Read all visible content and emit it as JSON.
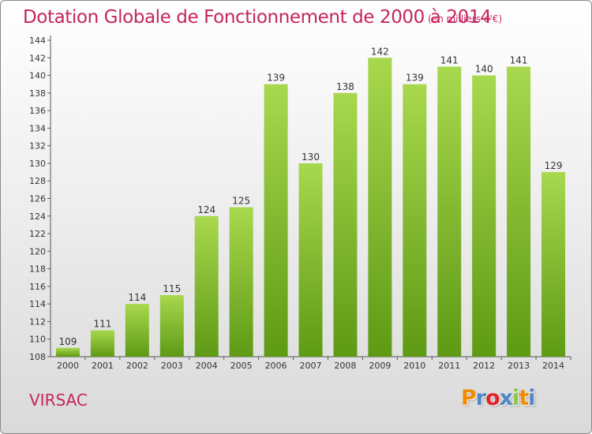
{
  "title": "Dotation Globale de Fonctionnement de 2000 à 2014",
  "unit_note": "(en milliers d'€)",
  "commune": "VIRSAC",
  "logo": [
    "P",
    "r",
    "o",
    "x",
    "i",
    "t",
    "i"
  ],
  "logo_colors": [
    "#f08c00",
    "#4f86c6",
    "#e0222a",
    "#4f86c6",
    "#8cc63f",
    "#f08c00",
    "#4f86c6"
  ],
  "colors": {
    "accent": "#c4245f",
    "bar_light": "#a8d84e",
    "bar_dark": "#5e9a14",
    "axis": "#555555"
  },
  "chart_data": {
    "type": "bar",
    "title": "Dotation Globale de Fonctionnement de 2000 à 2014",
    "categories": [
      "2000",
      "2001",
      "2002",
      "2003",
      "2004",
      "2005",
      "2006",
      "2007",
      "2008",
      "2009",
      "2010",
      "2011",
      "2012",
      "2013",
      "2014"
    ],
    "values": [
      109,
      111,
      114,
      115,
      124,
      125,
      139,
      130,
      138,
      142,
      139,
      141,
      140,
      141,
      129
    ],
    "ylim": [
      108,
      144
    ],
    "yticks": [
      "108",
      "110",
      "112",
      "114",
      "116",
      "118",
      "120",
      "122",
      "124",
      "126",
      "128",
      "130",
      "132",
      "134",
      "136",
      "138",
      "140",
      "142",
      "144"
    ],
    "grid": false,
    "legend": "none"
  }
}
